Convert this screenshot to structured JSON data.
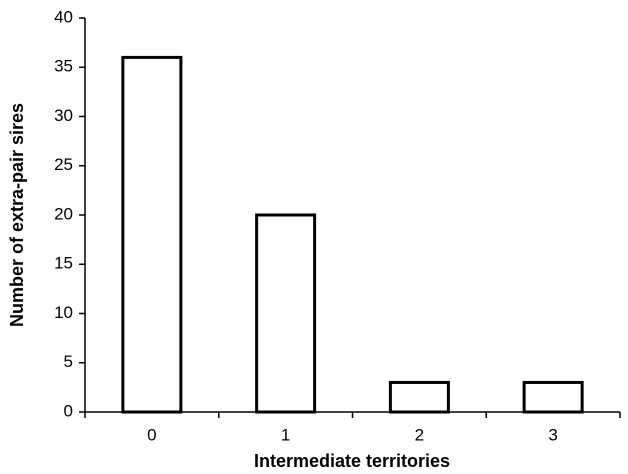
{
  "chart_data": {
    "type": "bar",
    "x_label": "Intermediate territories",
    "y_label": "Number of extra-pair sires",
    "categories": [
      "0",
      "1",
      "2",
      "3"
    ],
    "values": [
      36,
      20,
      3,
      3
    ],
    "color": "#ffffff",
    "ylim": [
      0,
      40
    ],
    "yticks": [
      0,
      5,
      10,
      15,
      20,
      25,
      30,
      35,
      40
    ],
    "grid": false
  }
}
